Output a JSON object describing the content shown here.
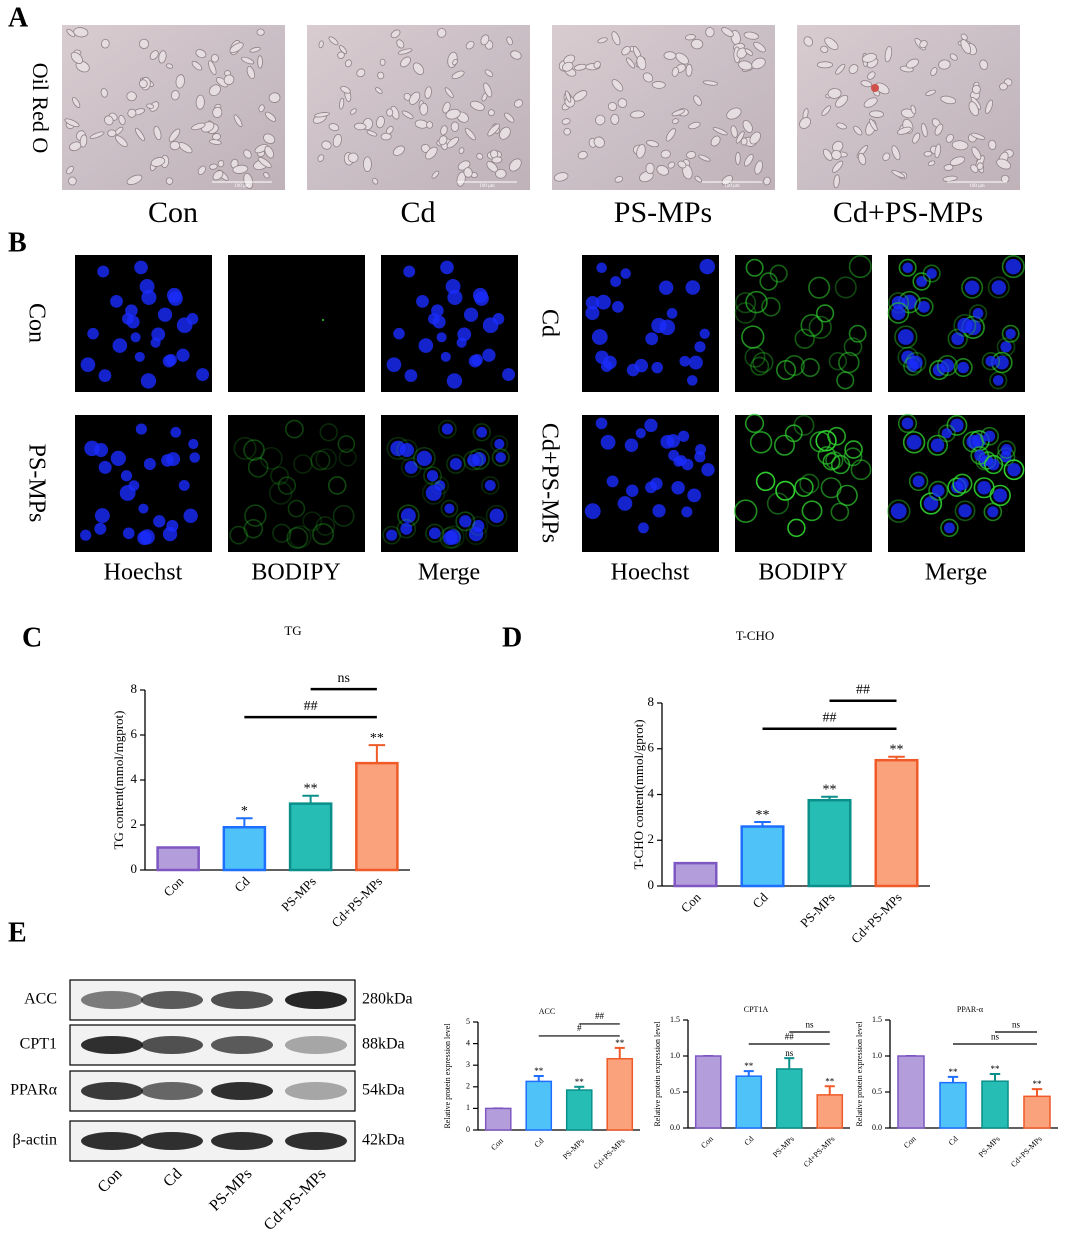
{
  "panel_a": {
    "letter": "A",
    "row_label": "Oil Red O",
    "scale_label": "100 μm",
    "captions": [
      "Con",
      "Cd",
      "PS-MPs",
      "Cd+PS-MPs"
    ]
  },
  "panel_b": {
    "letter": "B",
    "groups": [
      {
        "rows": [
          "Con",
          "PS-MPs"
        ],
        "columns": [
          "Hoechst",
          "BODIPY",
          "Merge"
        ]
      },
      {
        "rows": [
          "Cd",
          "Cd+PS-MPs"
        ],
        "columns": [
          "Hoechst",
          "BODIPY",
          "Merge"
        ]
      }
    ]
  },
  "panel_c": {
    "letter": "C"
  },
  "panel_d": {
    "letter": "D"
  },
  "panel_e": {
    "letter": "E",
    "proteins": [
      {
        "name": "ACC",
        "size": "280kDa"
      },
      {
        "name": "CPT1",
        "size": "88kDa"
      },
      {
        "name": "PPARα",
        "size": "54kDa"
      },
      {
        "name": "β-actin",
        "size": "42kDa"
      }
    ],
    "lanes": [
      "Con",
      "Cd",
      "PS-MPs",
      "Cd+PS-MPs"
    ]
  },
  "chart_data": [
    {
      "type": "bar",
      "title": "TG",
      "ylabel": "TG content(mmol/mgprot)",
      "categories": [
        "Con",
        "Cd",
        "PS-MPs",
        "Cd+PS-MPs"
      ],
      "values": [
        1,
        1.9,
        2.95,
        4.75
      ],
      "errors": [
        0,
        0.4,
        0.35,
        0.8
      ],
      "colors": [
        "#b39ddb",
        "#4fc3f7",
        "#26bdb5",
        "#f9a27c"
      ],
      "edge_colors": [
        "#7e57c2",
        "#1e6fff",
        "#0b8f8a",
        "#f05a28"
      ],
      "ylim": [
        0,
        8
      ],
      "yticks": [
        0,
        2,
        4,
        6,
        8
      ],
      "annotations": [
        {
          "at": "Cd",
          "text": "*"
        },
        {
          "at": "PS-MPs",
          "text": "**"
        },
        {
          "at": "Cd+PS-MPs",
          "text": "**"
        }
      ],
      "comparisons": [
        {
          "from": "Cd",
          "to": "Cd+PS-MPs",
          "text": "##"
        },
        {
          "from": "PS-MPs",
          "to": "Cd+PS-MPs",
          "text": "ns"
        }
      ]
    },
    {
      "type": "bar",
      "title": "T-CHO",
      "ylabel": "T-CHO content(mmol/gprot)",
      "categories": [
        "Con",
        "Cd",
        "PS-MPs",
        "Cd+PS-MPs"
      ],
      "values": [
        1,
        2.6,
        3.75,
        5.5
      ],
      "errors": [
        0,
        0.2,
        0.15,
        0.15
      ],
      "colors": [
        "#b39ddb",
        "#4fc3f7",
        "#26bdb5",
        "#f9a27c"
      ],
      "edge_colors": [
        "#7e57c2",
        "#1e6fff",
        "#0b8f8a",
        "#f05a28"
      ],
      "ylim": [
        0,
        8
      ],
      "yticks": [
        0,
        2,
        4,
        6,
        8
      ],
      "annotations": [
        {
          "at": "Cd",
          "text": "**"
        },
        {
          "at": "PS-MPs",
          "text": "**"
        },
        {
          "at": "Cd+PS-MPs",
          "text": "**"
        }
      ],
      "comparisons": [
        {
          "from": "Cd",
          "to": "Cd+PS-MPs",
          "text": "##"
        },
        {
          "from": "PS-MPs",
          "to": "Cd+PS-MPs",
          "text": "##"
        }
      ]
    },
    {
      "type": "bar",
      "title": "ACC",
      "ylabel": "Relative protein expression level",
      "categories": [
        "Con",
        "Cd",
        "PS-MPs",
        "Cd+PS-MPs"
      ],
      "values": [
        1,
        2.25,
        1.85,
        3.3
      ],
      "errors": [
        0,
        0.25,
        0.15,
        0.5
      ],
      "colors": [
        "#b39ddb",
        "#4fc3f7",
        "#26bdb5",
        "#f9a27c"
      ],
      "edge_colors": [
        "#7e57c2",
        "#1e6fff",
        "#0b8f8a",
        "#f05a28"
      ],
      "ylim": [
        0,
        5
      ],
      "yticks": [
        0,
        1,
        2,
        3,
        4,
        5
      ],
      "annotations": [
        {
          "at": "Cd",
          "text": "**"
        },
        {
          "at": "PS-MPs",
          "text": "**"
        },
        {
          "at": "Cd+PS-MPs",
          "text": "**"
        }
      ],
      "comparisons": [
        {
          "from": "Cd",
          "to": "Cd+PS-MPs",
          "text": "#"
        },
        {
          "from": "PS-MPs",
          "to": "Cd+PS-MPs",
          "text": "##"
        }
      ]
    },
    {
      "type": "bar",
      "title": "CPT1A",
      "ylabel": "Relative protein expression level",
      "categories": [
        "Con",
        "Cd",
        "PS-MPs",
        "Cd+PS-MPs"
      ],
      "values": [
        1,
        0.72,
        0.82,
        0.46
      ],
      "errors": [
        0,
        0.07,
        0.15,
        0.12
      ],
      "colors": [
        "#b39ddb",
        "#4fc3f7",
        "#26bdb5",
        "#f9a27c"
      ],
      "edge_colors": [
        "#7e57c2",
        "#1e6fff",
        "#0b8f8a",
        "#f05a28"
      ],
      "ylim": [
        0,
        1.5
      ],
      "yticks": [
        {
          "value": 0,
          "label": "0.0"
        },
        0.5,
        {
          "value": 1,
          "label": "1.0"
        },
        1.5
      ],
      "annotations": [
        {
          "at": "Cd",
          "text": "**"
        },
        {
          "at": "PS-MPs",
          "text": "ns"
        },
        {
          "at": "Cd+PS-MPs",
          "text": "**"
        }
      ],
      "comparisons": [
        {
          "from": "Cd",
          "to": "Cd+PS-MPs",
          "text": "##"
        },
        {
          "from": "PS-MPs",
          "to": "Cd+PS-MPs",
          "text": "ns"
        }
      ]
    },
    {
      "type": "bar",
      "title": "PPAR-α",
      "ylabel": "Relative protein expression level",
      "categories": [
        "Con",
        "Cd",
        "PS-MPs",
        "Cd+PS-MPs"
      ],
      "values": [
        1,
        0.63,
        0.65,
        0.44
      ],
      "errors": [
        0,
        0.08,
        0.1,
        0.1
      ],
      "colors": [
        "#b39ddb",
        "#4fc3f7",
        "#26bdb5",
        "#f9a27c"
      ],
      "edge_colors": [
        "#7e57c2",
        "#1e6fff",
        "#0b8f8a",
        "#f05a28"
      ],
      "ylim": [
        0,
        1.5
      ],
      "yticks": [
        {
          "value": 0,
          "label": "0.0"
        },
        0.5,
        {
          "value": 1,
          "label": "1.0"
        },
        1.5
      ],
      "annotations": [
        {
          "at": "Cd",
          "text": "**"
        },
        {
          "at": "PS-MPs",
          "text": "**"
        },
        {
          "at": "Cd+PS-MPs",
          "text": "**"
        }
      ],
      "comparisons": [
        {
          "from": "Cd",
          "to": "Cd+PS-MPs",
          "text": "ns"
        },
        {
          "from": "PS-MPs",
          "to": "Cd+PS-MPs",
          "text": "ns"
        }
      ]
    }
  ]
}
